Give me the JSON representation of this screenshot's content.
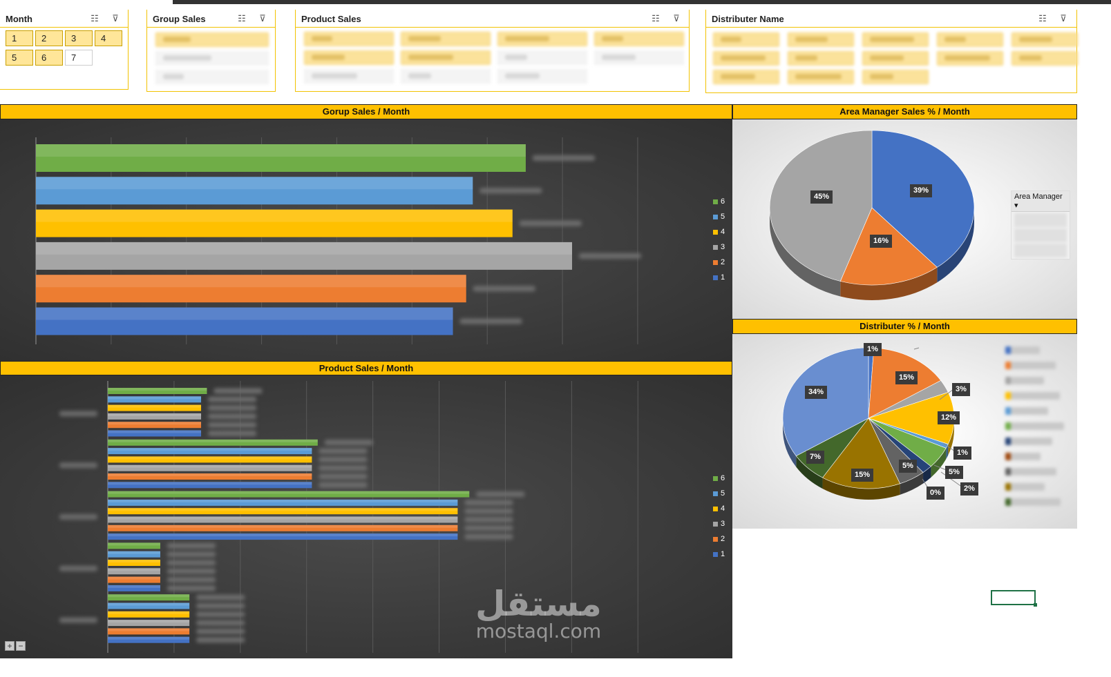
{
  "slicers": {
    "month": {
      "title": "Month",
      "items": [
        "1",
        "2",
        "3",
        "4",
        "5",
        "6",
        "7"
      ]
    },
    "group_sales": {
      "title": "Group Sales"
    },
    "product_sales": {
      "title": "Product Sales"
    },
    "distributer": {
      "title": "Distributer Name"
    }
  },
  "icons": {
    "multi_select": "multi-select-icon",
    "clear_filter": "clear-filter-icon"
  },
  "charts": {
    "group_sales": {
      "title": "Gorup Sales / Month"
    },
    "area_manager": {
      "title": "Area Manager Sales % / Month",
      "legend_header": "Area Manager"
    },
    "distributer": {
      "title": "Distributer % / Month"
    },
    "product_sales": {
      "title": "Product Sales / Month"
    }
  },
  "chart_data": [
    {
      "type": "bar",
      "title": "Gorup Sales / Month",
      "orientation": "horizontal",
      "series": [
        {
          "name": "6",
          "values": [
            0.74
          ],
          "color": "#70ad47"
        },
        {
          "name": "5",
          "values": [
            0.66
          ],
          "color": "#5b9bd5"
        },
        {
          "name": "4",
          "values": [
            0.72
          ],
          "color": "#ffc000"
        },
        {
          "name": "3",
          "values": [
            0.81
          ],
          "color": "#a5a5a5"
        },
        {
          "name": "2",
          "values": [
            0.65
          ],
          "color": "#ed7d31"
        },
        {
          "name": "1",
          "values": [
            0.63
          ],
          "color": "#4472c4"
        }
      ],
      "legend": "right",
      "grid": true
    },
    {
      "type": "pie",
      "title": "Area Manager Sales % / Month",
      "labels": [
        "39%",
        "16%",
        "45%"
      ],
      "values": [
        39,
        16,
        45
      ],
      "colors": [
        "#4472c4",
        "#ed7d31",
        "#a5a5a5"
      ],
      "legend": "right"
    },
    {
      "type": "pie",
      "title": "Distributer % / Month",
      "labels": [
        "1%",
        "15%",
        "3%",
        "12%",
        "1%",
        "5%",
        "2%",
        "0%",
        "5%",
        "15%",
        "7%",
        "34%"
      ],
      "values": [
        1,
        15,
        3,
        12,
        1,
        5,
        2,
        0,
        5,
        15,
        7,
        34
      ],
      "colors": [
        "#4472c4",
        "#ed7d31",
        "#a5a5a5",
        "#ffc000",
        "#5b9bd5",
        "#70ad47",
        "#264478",
        "#9e480e",
        "#636363",
        "#997300",
        "#43682b",
        "#698ed0"
      ],
      "legend": "right"
    },
    {
      "type": "bar",
      "title": "Product Sales / Month",
      "orientation": "horizontal",
      "category_count": 5,
      "series": [
        {
          "name": "6",
          "values": [
            0.17,
            0.36,
            0.62,
            0.09,
            0.14
          ],
          "color": "#70ad47"
        },
        {
          "name": "5",
          "values": [
            0.16,
            0.35,
            0.6,
            0.09,
            0.14
          ],
          "color": "#5b9bd5"
        },
        {
          "name": "4",
          "values": [
            0.16,
            0.35,
            0.6,
            0.09,
            0.14
          ],
          "color": "#ffc000"
        },
        {
          "name": "3",
          "values": [
            0.16,
            0.35,
            0.6,
            0.09,
            0.14
          ],
          "color": "#a5a5a5"
        },
        {
          "name": "2",
          "values": [
            0.16,
            0.35,
            0.6,
            0.09,
            0.14
          ],
          "color": "#ed7d31"
        },
        {
          "name": "1",
          "values": [
            0.16,
            0.35,
            0.6,
            0.09,
            0.14
          ],
          "color": "#4472c4"
        }
      ],
      "legend": "right",
      "grid": true
    }
  ],
  "watermark": {
    "arabic": "مستقل",
    "latin": "mostaql.com"
  },
  "zoom": {
    "plus": "+",
    "minus": "−"
  }
}
